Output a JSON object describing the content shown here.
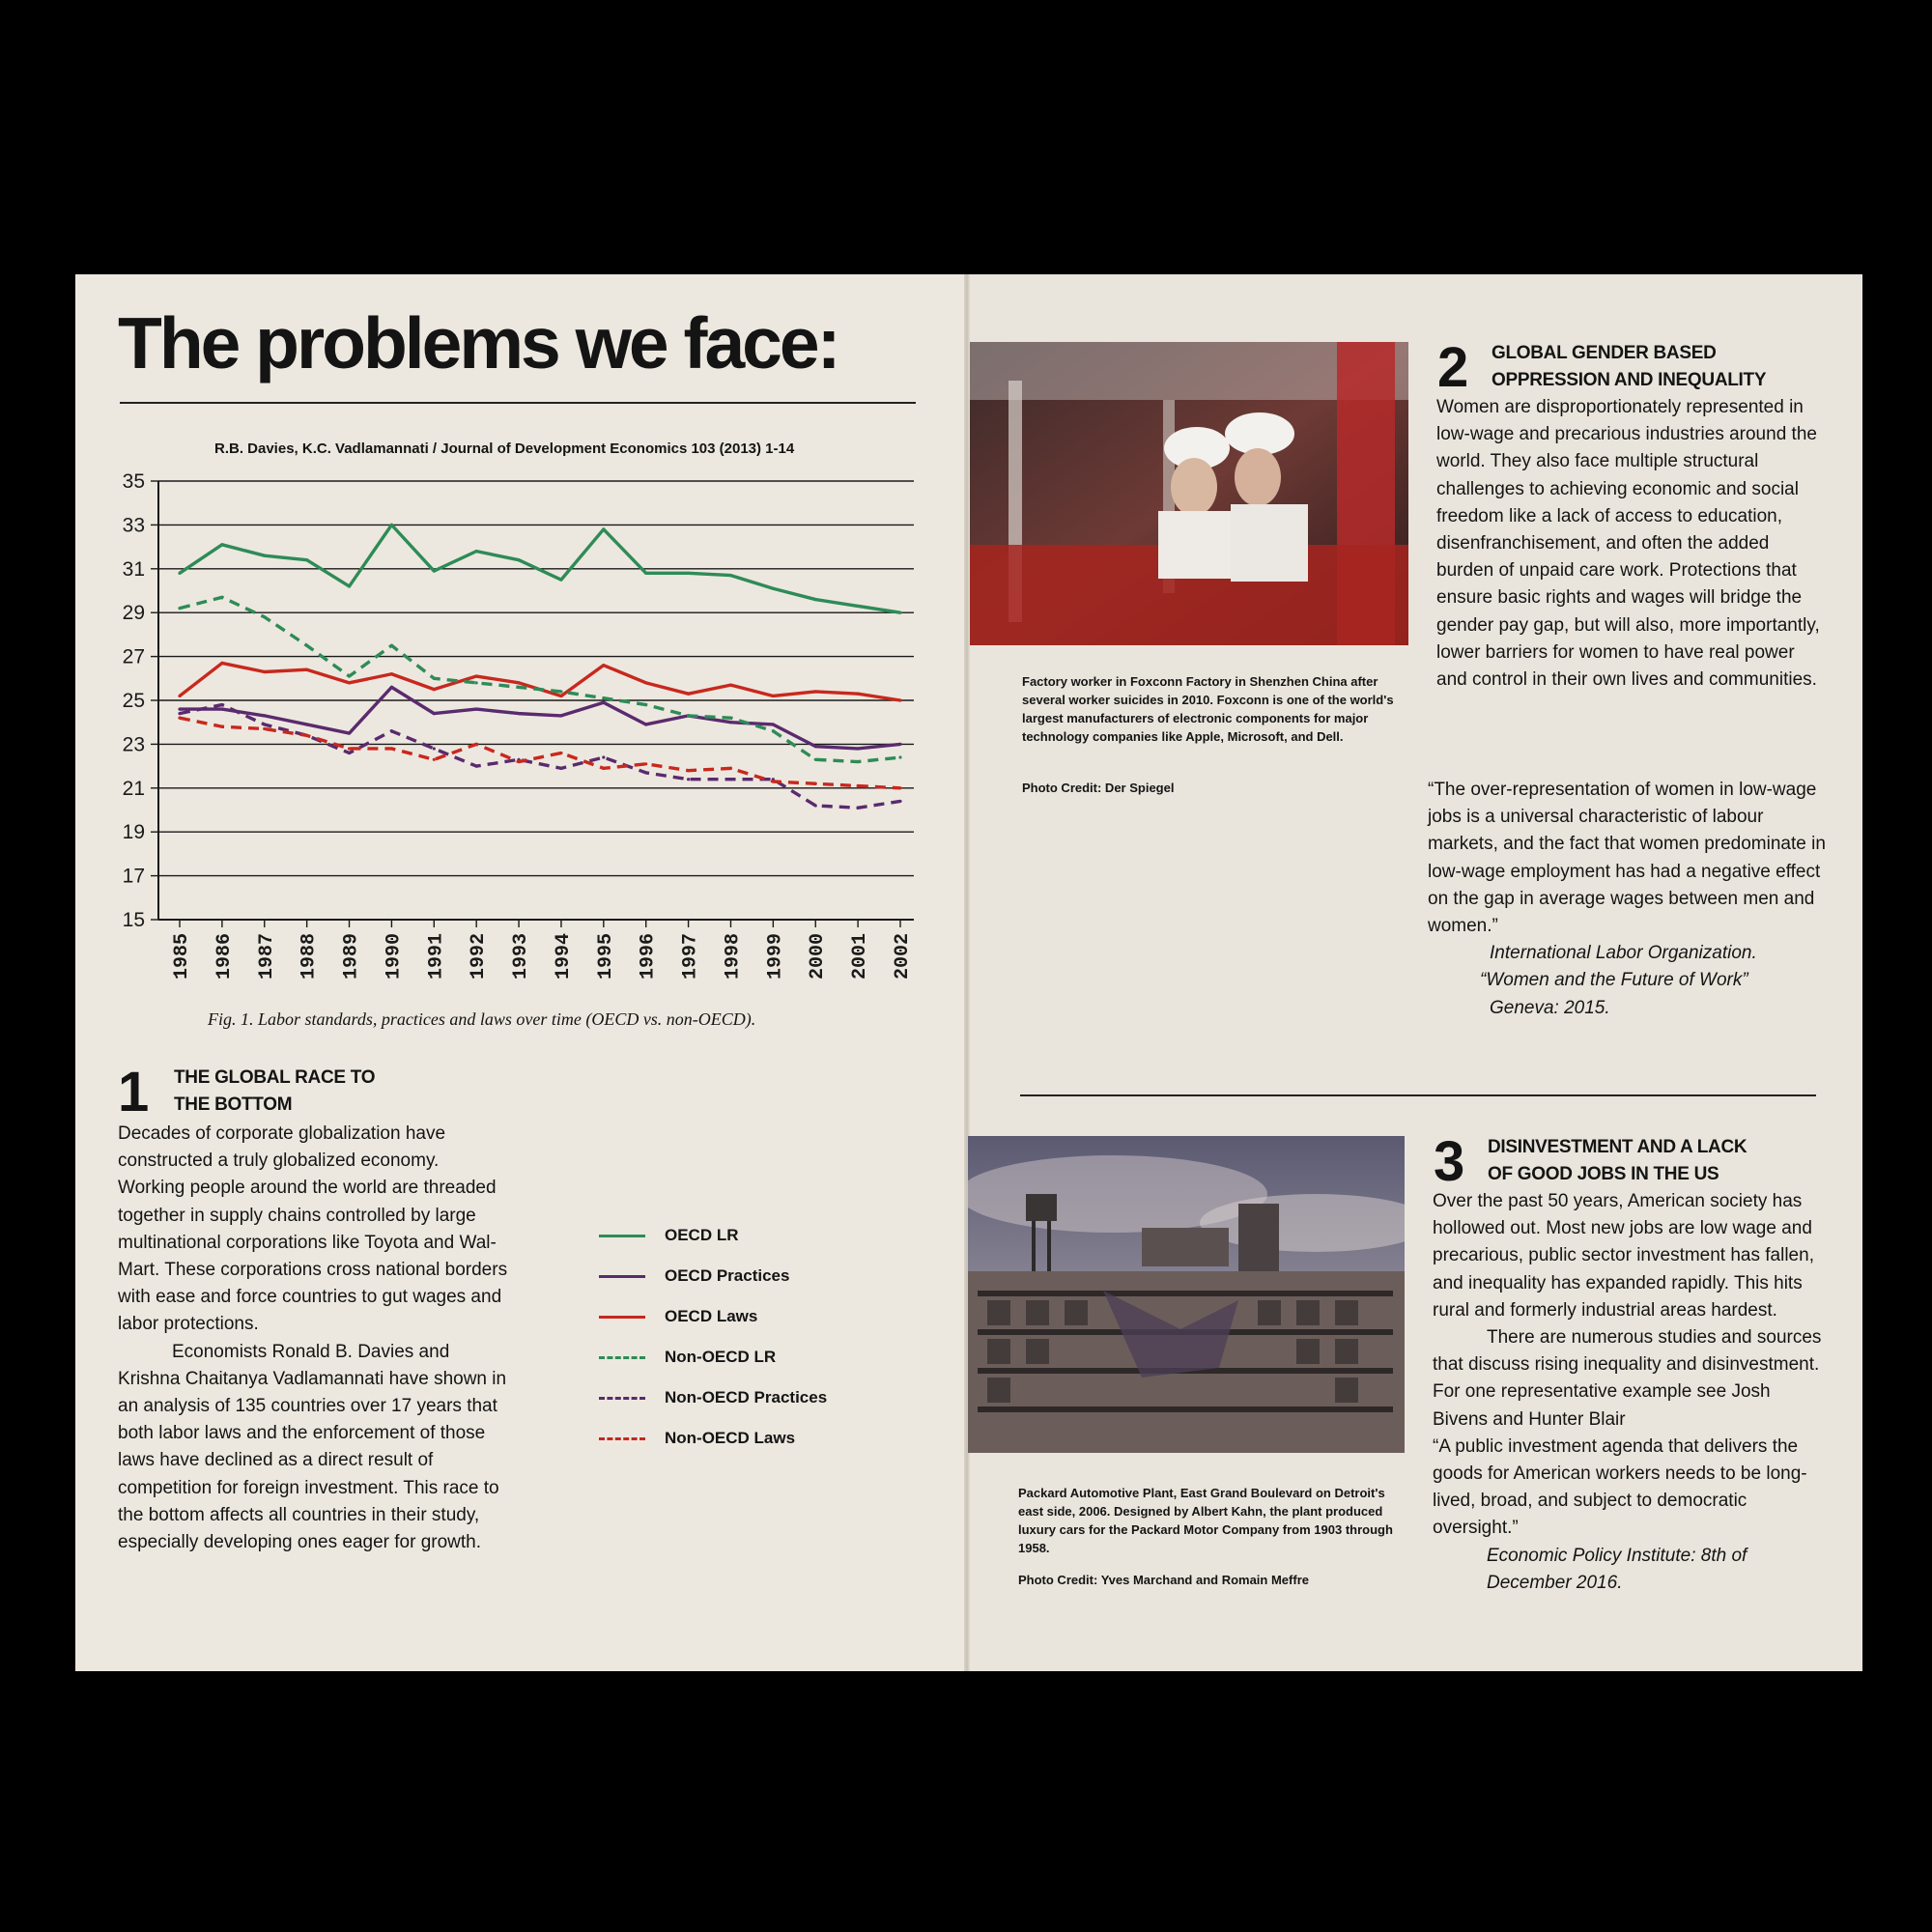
{
  "page": {
    "title": "The problems we face:",
    "chart_source": "R.B. Davies, K.C. Vadlamannati / Journal of Development Economics 103 (2013) 1-14",
    "fig_caption": "Fig. 1. Labor standards, practices and laws over time (OECD vs. non-OECD)."
  },
  "chart_data": {
    "type": "line",
    "x": [
      1985,
      1986,
      1987,
      1988,
      1989,
      1990,
      1991,
      1992,
      1993,
      1994,
      1995,
      1996,
      1997,
      1998,
      1999,
      2000,
      2001,
      2002
    ],
    "ylim": [
      15,
      35
    ],
    "yticks": [
      15,
      17,
      19,
      21,
      23,
      25,
      27,
      29,
      31,
      33,
      35
    ],
    "grid": true,
    "legend_position": "below-right",
    "series": [
      {
        "name": "OECD LR",
        "color": "#2e8b57",
        "style": "solid",
        "values": [
          30.8,
          32.1,
          31.6,
          31.4,
          30.2,
          33.0,
          30.9,
          31.8,
          31.4,
          30.5,
          32.8,
          30.8,
          30.8,
          30.7,
          30.1,
          29.6,
          29.3,
          29.0
        ]
      },
      {
        "name": "OECD Practices",
        "color": "#5a2a6e",
        "style": "solid",
        "values": [
          24.6,
          24.6,
          24.3,
          23.9,
          23.5,
          25.6,
          24.4,
          24.6,
          24.4,
          24.3,
          24.9,
          23.9,
          24.3,
          24.0,
          23.9,
          22.9,
          22.8,
          23.0
        ]
      },
      {
        "name": "OECD Laws",
        "color": "#c8281e",
        "style": "solid",
        "values": [
          25.2,
          26.7,
          26.3,
          26.4,
          25.8,
          26.2,
          25.5,
          26.1,
          25.8,
          25.2,
          26.6,
          25.8,
          25.3,
          25.7,
          25.2,
          25.4,
          25.3,
          25.0
        ]
      },
      {
        "name": "Non-OECD LR",
        "color": "#2e8b57",
        "style": "dashed",
        "values": [
          29.2,
          29.7,
          28.8,
          27.5,
          26.1,
          27.5,
          26.0,
          25.8,
          25.6,
          25.4,
          25.1,
          24.8,
          24.3,
          24.2,
          23.6,
          22.3,
          22.2,
          22.4
        ]
      },
      {
        "name": "Non-OECD Practices",
        "color": "#5a2a6e",
        "style": "dashed",
        "values": [
          24.4,
          24.8,
          23.9,
          23.4,
          22.6,
          23.6,
          22.8,
          22.0,
          22.3,
          21.9,
          22.4,
          21.7,
          21.4,
          21.4,
          21.4,
          20.2,
          20.1,
          20.4
        ]
      },
      {
        "name": "Non-OECD Laws",
        "color": "#c8281e",
        "style": "dashed",
        "values": [
          24.2,
          23.8,
          23.7,
          23.4,
          22.8,
          22.8,
          22.3,
          23.0,
          22.2,
          22.6,
          21.9,
          22.1,
          21.8,
          21.9,
          21.3,
          21.2,
          21.1,
          21.0
        ]
      }
    ]
  },
  "section1": {
    "number": "1",
    "heading_line1": "THE GLOBAL RACE TO",
    "heading_line2": "THE BOTTOM",
    "para1": "Decades of corporate globalization have constructed a truly globalized economy. Working people around the world are threaded together in supply chains controlled by large multinational corporations like Toyota and Wal-Mart. These corporations cross national borders with ease and force countries to gut wages and labor protections.",
    "para2": "Economists Ronald B. Davies and Krishna Chaitanya Vadlamannati have shown in an analysis of 135 countries over 17 years that both labor laws and the enforcement of those laws have declined as a direct result of competition for foreign investment. This race to the bottom affects all countries in their study, especially developing ones eager for growth."
  },
  "photo1": {
    "caption": "Factory worker in Foxconn Factory in Shenzhen China after several worker suicides in 2010. Foxconn is one of the world's largest manufacturers of electronic components for major technology companies like Apple, Microsoft, and Dell.",
    "credit": "Photo Credit: Der Spiegel"
  },
  "section2": {
    "number": "2",
    "heading_line1": "GLOBAL GENDER BASED",
    "heading_line2": "OPPRESSION AND INEQUALITY",
    "para": "Women are disproportionately represented in low-wage and precarious industries around the world. They also face multiple structural challenges to achieving economic and social freedom like a lack of access to education, disenfranchisement, and often the added burden of unpaid care work. Protections that ensure basic rights and wages will bridge the gender pay gap, but will also, more importantly, lower barriers for women to have real power and control in their own lives and communities.",
    "quote": "“The over-representation of women in low-wage jobs is a universal characteristic of labour markets, and the fact that women predominate in low-wage employment has had a negative effect on the gap in average wages between men and women.”",
    "attr1": "International Labor Organization.",
    "attr2": "“Women and the Future of Work”",
    "attr3": "Geneva: 2015."
  },
  "photo2": {
    "caption": "Packard Automotive Plant, East Grand Boulevard on Detroit's east side, 2006. Designed by Albert Kahn, the plant produced luxury cars for the Packard Motor Company from 1903 through 1958.",
    "credit": "Photo Credit: Yves Marchand and Romain Meffre"
  },
  "section3": {
    "number": "3",
    "heading_line1": "DISINVESTMENT AND A LACK",
    "heading_line2": "OF GOOD JOBS IN THE US",
    "para1": "Over the past 50 years, American society has hollowed out. Most new jobs are low wage and precarious, public sector investment has fallen, and inequality has expanded rapidly. This hits rural and formerly industrial areas hardest.",
    "para2": "There are numerous studies and sources that discuss rising inequality and disinvestment. For one representative example see Josh Bivens and Hunter Blair",
    "quote": "“A public investment agenda that delivers the goods for American workers needs to be long-lived, broad, and subject to democratic oversight.”",
    "attr1": "Economic Policy Institute: 8th of",
    "attr2": "December 2016."
  }
}
